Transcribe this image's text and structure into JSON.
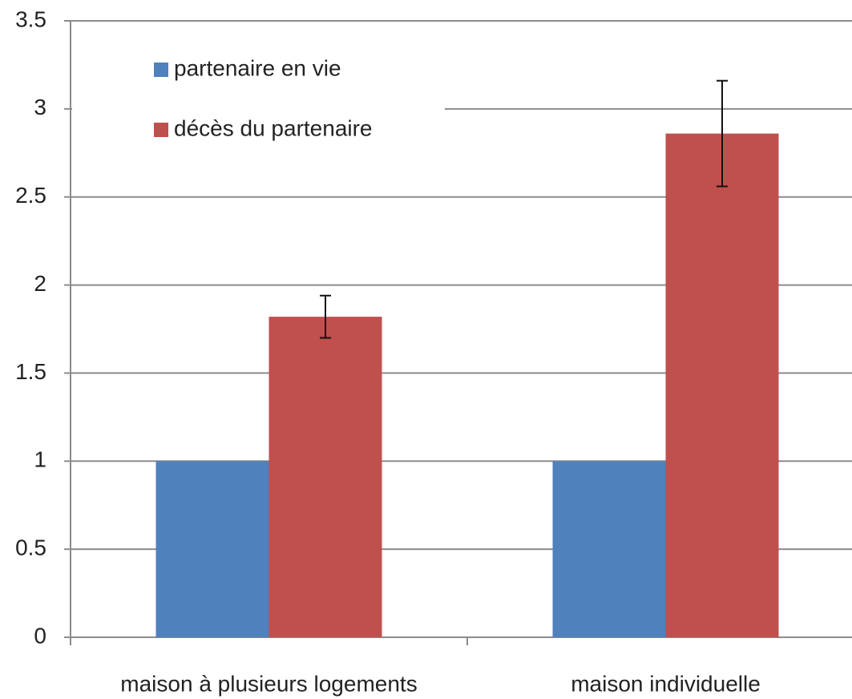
{
  "chart_data": {
    "type": "bar",
    "categories": [
      "maison à plusieurs logements",
      "maison individuelle"
    ],
    "series": [
      {
        "name": "partenaire en vie",
        "color": "#4f81bd",
        "values": [
          1,
          1
        ]
      },
      {
        "name": "décès du partenaire",
        "color": "#c0504d",
        "values": [
          1.82,
          2.86
        ],
        "errors": [
          0.12,
          0.3
        ]
      }
    ],
    "ylim": [
      0,
      3.5
    ],
    "yticks": [
      0,
      0.5,
      1,
      1.5,
      2,
      2.5,
      3,
      3.5
    ],
    "grid": true,
    "legend": "top-left"
  }
}
